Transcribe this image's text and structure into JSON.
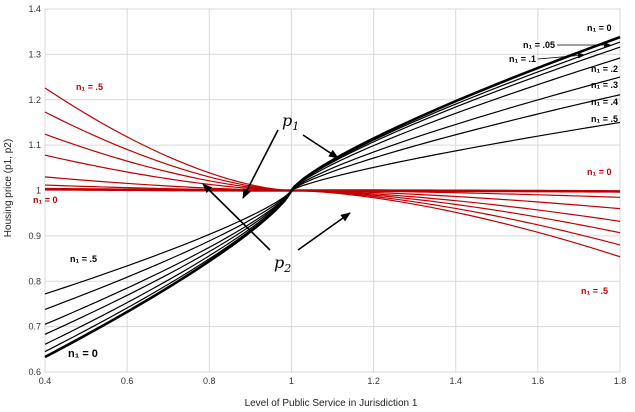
{
  "chart_data": {
    "type": "line",
    "xlabel": "Level of Public Service in Jurisdiction 1",
    "ylabel": "Housing price (p1, p2)",
    "xlim": [
      0.4,
      1.8
    ],
    "ylim": [
      0.6,
      1.4
    ],
    "xticks": [
      "0.4",
      "0.6",
      "0.8",
      "1",
      "1.2",
      "1.4",
      "1.6",
      "1.8"
    ],
    "yticks": [
      "0.6",
      "0.7",
      "0.8",
      "0.9",
      "1",
      "1.1",
      "1.2",
      "1.3",
      "1.4"
    ],
    "grid": true,
    "colors": {
      "p1": "#000000",
      "p2": "#c00000"
    },
    "p1_series": [
      {
        "n1": "0",
        "y_start": 0.633,
        "y_end": 1.338,
        "width": 2.6
      },
      {
        "n1": ".05",
        "y_start": 0.645,
        "y_end": 1.327,
        "width": 1.2
      },
      {
        "n1": ".1",
        "y_start": 0.661,
        "y_end": 1.316,
        "width": 1.2
      },
      {
        "n1": ".2",
        "y_start": 0.683,
        "y_end": 1.292,
        "width": 1.2
      },
      {
        "n1": ".3",
        "y_start": 0.705,
        "y_end": 1.25,
        "width": 1.2
      },
      {
        "n1": ".4",
        "y_start": 0.738,
        "y_end": 1.211,
        "width": 1.2
      },
      {
        "n1": ".5",
        "y_start": 0.772,
        "y_end": 1.15,
        "width": 1.2
      }
    ],
    "p2_series": [
      {
        "n1": "0",
        "y_start": 1.003,
        "y_end": 0.998,
        "width": 2.6
      },
      {
        "n1": ".05",
        "y_start": 1.012,
        "y_end": 0.985,
        "width": 1.2
      },
      {
        "n1": ".1",
        "y_start": 1.03,
        "y_end": 0.96,
        "width": 1.2
      },
      {
        "n1": ".2",
        "y_start": 1.078,
        "y_end": 0.932,
        "width": 1.2
      },
      {
        "n1": ".3",
        "y_start": 1.124,
        "y_end": 0.907,
        "width": 1.2
      },
      {
        "n1": ".4",
        "y_start": 1.173,
        "y_end": 0.88,
        "width": 1.2
      },
      {
        "n1": ".5",
        "y_start": 1.226,
        "y_end": 0.854,
        "width": 1.2
      }
    ],
    "labels": {
      "p1_end": [
        "n₁ = 0",
        "n₁ = .05",
        "n₁ = .1",
        "n₁ = .2",
        "n₁ = .3",
        "n₁ = .4",
        "n₁ = .5"
      ],
      "p1_start_top": "n₁ = .5",
      "p1_start_bottom": "n₁ = 0",
      "p2_start_top": "n₁ = .5",
      "p2_start_bottom": "n₁ = 0",
      "p2_end_top": "n₁ = 0",
      "p2_end_bottom": "n₁ = .5"
    },
    "annotations": {
      "p1": "p",
      "p1_sub": "1",
      "p2": "p",
      "p2_sub": "2"
    }
  }
}
